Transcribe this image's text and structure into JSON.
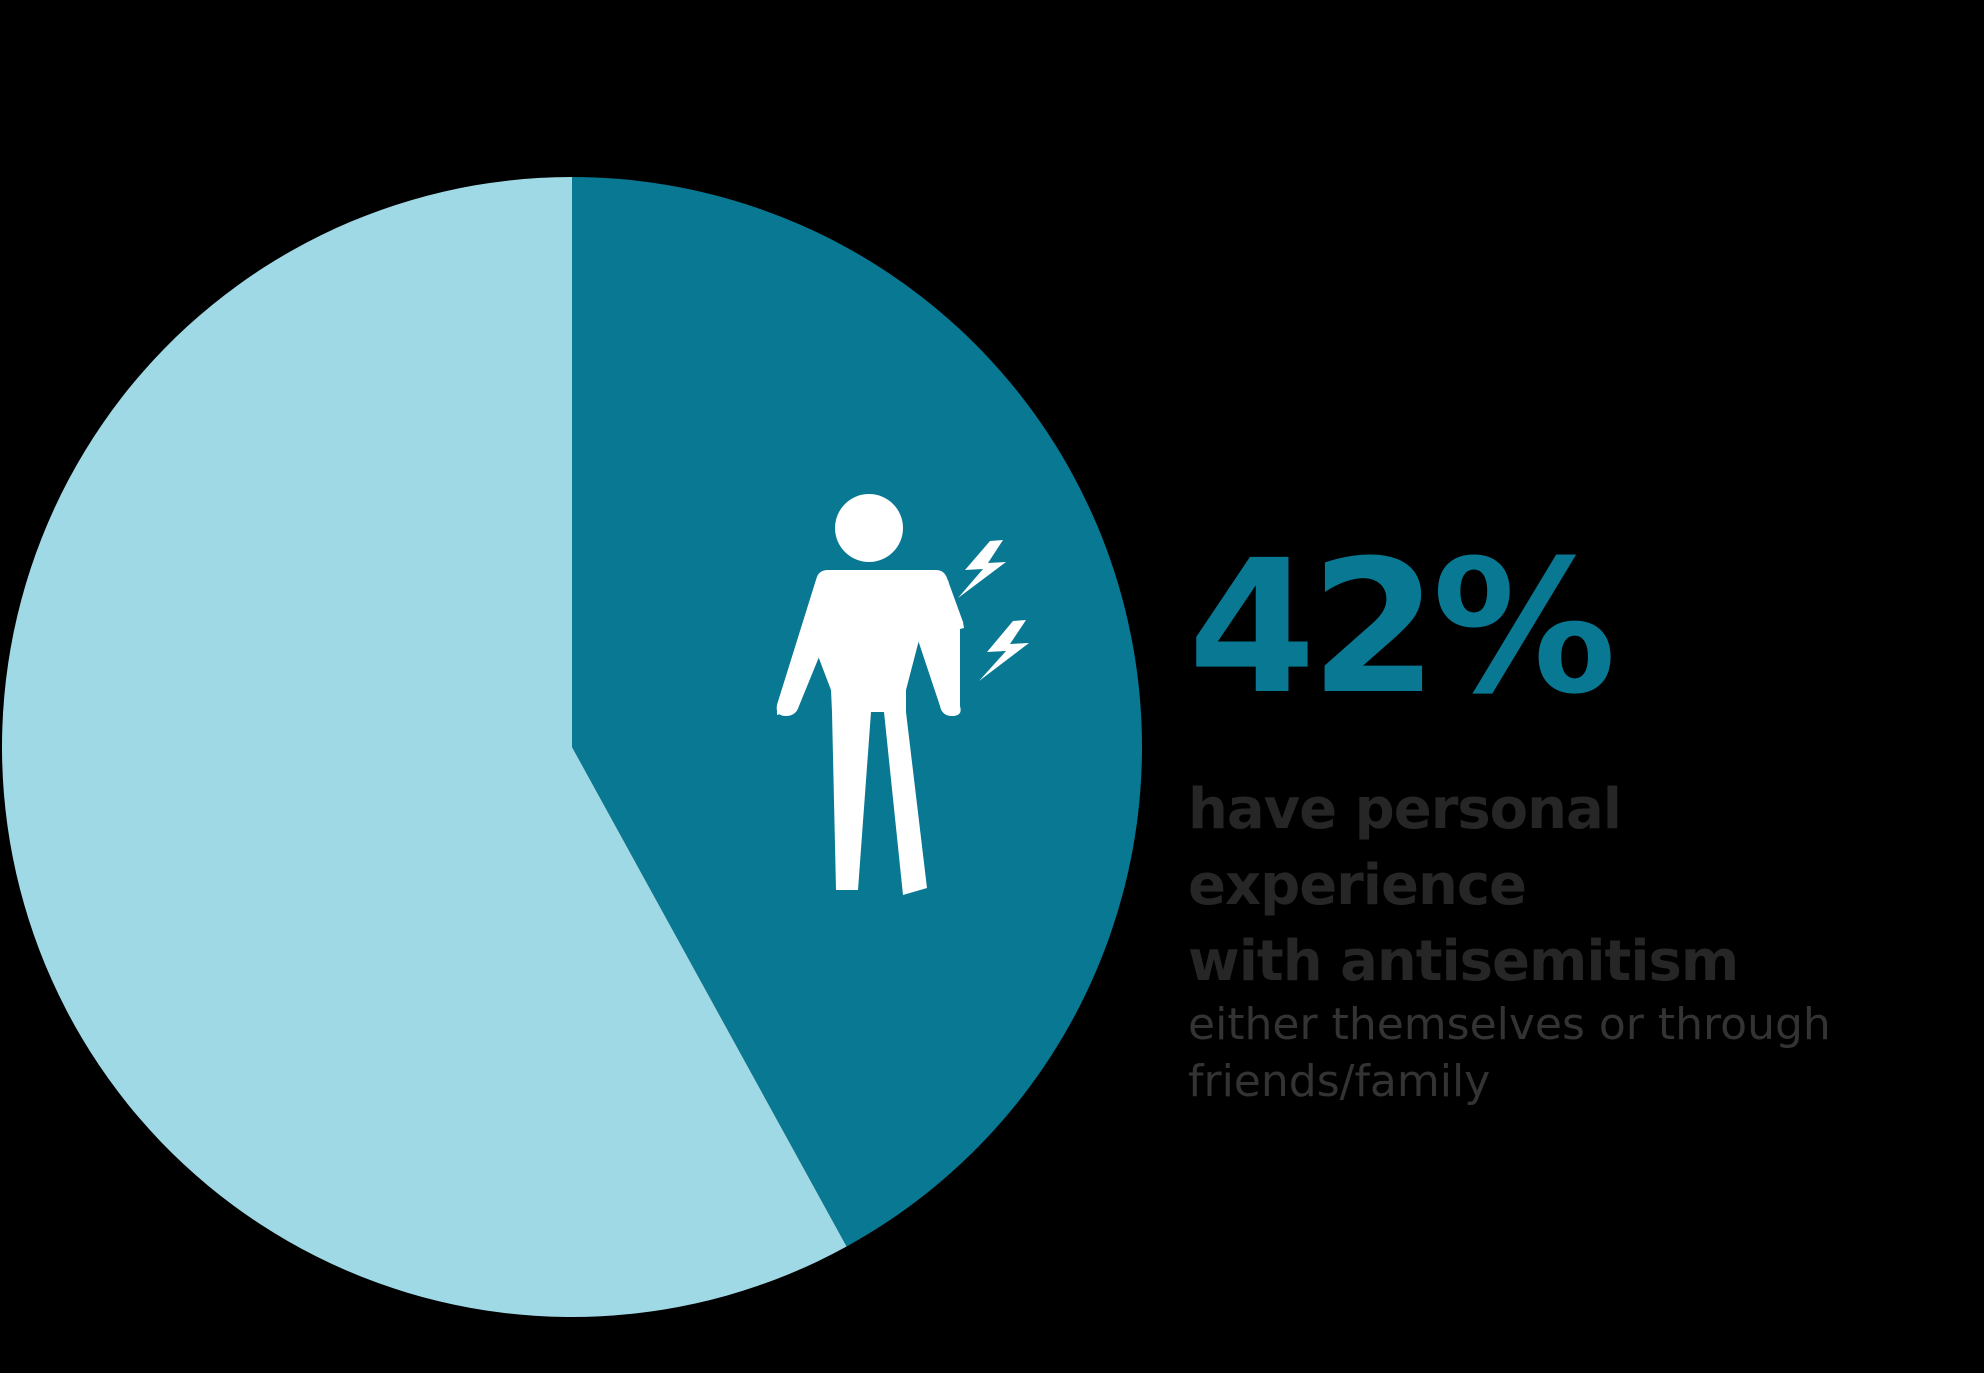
{
  "colors": {
    "background": "#000000",
    "highlight": "#087893",
    "remainder": "#9fd9e6",
    "headline_text": "#262626",
    "sub_text": "#333333",
    "icon": "#ffffff"
  },
  "chart_data": {
    "type": "pie",
    "slices": [
      {
        "value": 42,
        "color": "#087893",
        "icon": "person-shock-icon"
      },
      {
        "value": 58,
        "color": "#9fd9e6"
      }
    ],
    "start_angle": "12 o'clock",
    "direction": "clockwise",
    "legend": "none"
  },
  "stat": {
    "value": "42%",
    "headline_line1": "have personal experience",
    "headline_line2": "with antisemitism",
    "sub_line1": "either themselves or through",
    "sub_line2": "friends/family"
  }
}
